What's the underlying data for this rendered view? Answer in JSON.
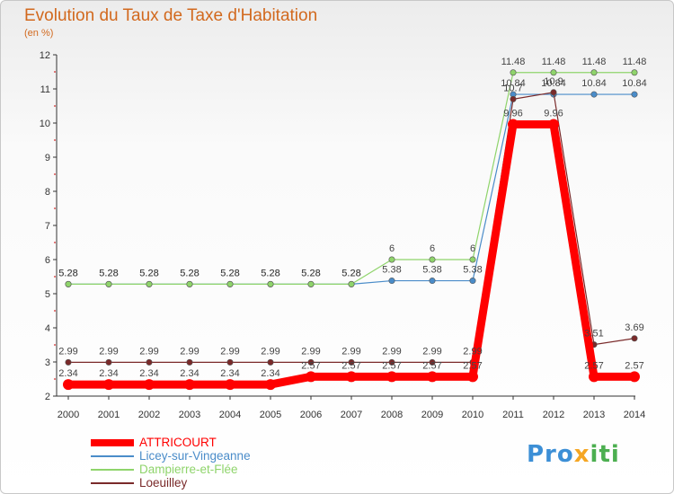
{
  "title": "Evolution du Taux de Taxe d'Habitation",
  "subtitle": "(en %)",
  "brand": {
    "part1": "Pro",
    "part2": "x",
    "part3": "iti"
  },
  "chart_data": {
    "type": "line",
    "title": "Evolution du Taux de Taxe d'Habitation",
    "ylabel": "(en %)",
    "ylim": [
      2,
      12
    ],
    "yticks": [
      2,
      3,
      4,
      5,
      6,
      7,
      8,
      9,
      10,
      11,
      12
    ],
    "categories": [
      "2000",
      "2001",
      "2002",
      "2003",
      "2004",
      "2005",
      "2006",
      "2007",
      "2008",
      "2009",
      "2010",
      "2011",
      "2012",
      "2013",
      "2014"
    ],
    "grid": false,
    "legend_position": "bottom-left",
    "series": [
      {
        "name": "ATTRICOURT",
        "color": "#ff0000",
        "width": 9,
        "values": [
          2.34,
          2.34,
          2.34,
          2.34,
          2.34,
          2.34,
          2.57,
          2.57,
          2.57,
          2.57,
          2.57,
          9.96,
          9.96,
          2.57,
          2.57
        ],
        "labels": [
          "2.34",
          "2.34",
          "2.34",
          "2.34",
          "2.34",
          "2.34",
          "2.57",
          "2.57",
          "2.57",
          "2.57",
          "2.57",
          "9.96",
          "9.96",
          "2.57",
          "2.57"
        ]
      },
      {
        "name": "Licey-sur-Vingeanne",
        "color": "#4a8cc9",
        "width": 1.2,
        "values": [
          5.28,
          5.28,
          5.28,
          5.28,
          5.28,
          5.28,
          5.28,
          5.28,
          5.38,
          5.38,
          5.38,
          10.84,
          10.84,
          10.84,
          10.84
        ],
        "labels": [
          "5.28",
          "5.28",
          "5.28",
          "5.28",
          "5.28",
          "5.28",
          "5.28",
          "5.28",
          "5.38",
          "5.38",
          "5.38",
          "10.84",
          "10.84",
          "10.84",
          "10.84"
        ]
      },
      {
        "name": "Dampierre-et-Flée",
        "color": "#8fd46b",
        "width": 1.2,
        "values": [
          5.28,
          5.28,
          5.28,
          5.28,
          5.28,
          5.28,
          5.28,
          5.28,
          6,
          6,
          6,
          11.48,
          11.48,
          11.48,
          11.48
        ],
        "labels": [
          "5.28",
          "5.28",
          "5.28",
          "5.28",
          "5.28",
          "5.28",
          "5.28",
          "5.28",
          "6",
          "6",
          "6",
          "11.48",
          "11.48",
          "11.48",
          "11.48"
        ]
      },
      {
        "name": "Loeuilley",
        "color": "#7a2a2a",
        "width": 1.2,
        "values": [
          2.99,
          2.99,
          2.99,
          2.99,
          2.99,
          2.99,
          2.99,
          2.99,
          2.99,
          2.99,
          2.99,
          10.7,
          10.9,
          3.51,
          3.69
        ],
        "labels": [
          "2.99",
          "2.99",
          "2.99",
          "2.99",
          "2.99",
          "2.99",
          "2.99",
          "2.99",
          "2.99",
          "2.99",
          "2.99",
          "10.7",
          "10.9",
          "3.51",
          "3.69"
        ]
      }
    ]
  }
}
